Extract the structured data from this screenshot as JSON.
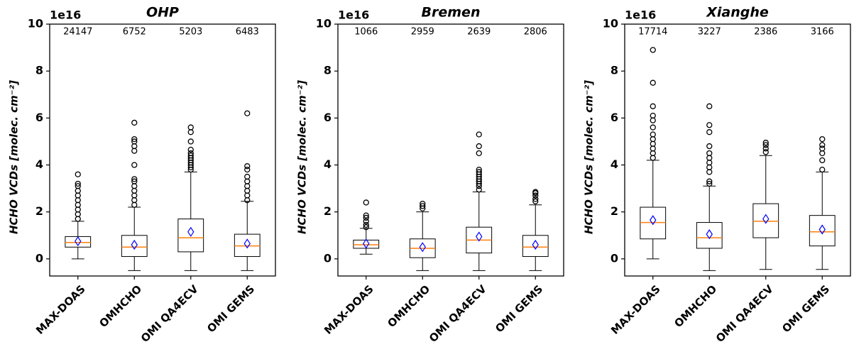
{
  "chart_data": [
    {
      "type": "box",
      "title": "OHP",
      "offset_label": "1e16",
      "ylabel": "HCHO VCDs [molec. cm⁻²]",
      "categories": [
        "MAX-DOAS",
        "OMHCHO",
        "OMI QA4ECV",
        "OMI GEMS"
      ],
      "counts": [
        24147,
        6752,
        5203,
        6483
      ],
      "ylim": [
        -0.73,
        10
      ],
      "yticks": [
        0,
        2,
        4,
        6,
        8,
        10
      ],
      "box_color": "#000000",
      "median_color": "#ff7f0e",
      "mean_color": "#0000ff",
      "boxes": [
        {
          "whislo": 0,
          "q1": 0.5,
          "med": 0.7,
          "q3": 0.95,
          "whishi": 1.6,
          "mean": 0.75,
          "fliers": [
            1.7,
            1.9,
            2.1,
            2.3,
            2.5,
            2.7,
            2.9,
            3.1,
            3.2,
            3.6
          ]
        },
        {
          "whislo": -0.5,
          "q1": 0.1,
          "med": 0.5,
          "q3": 1.0,
          "whishi": 2.2,
          "mean": 0.6,
          "fliers": [
            2.3,
            2.5,
            2.7,
            2.9,
            3.1,
            3.3,
            3.4,
            4.0,
            4.6,
            4.8,
            5.0,
            5.1,
            5.8
          ]
        },
        {
          "whislo": -0.5,
          "q1": 0.3,
          "med": 0.9,
          "q3": 1.7,
          "whishi": 3.7,
          "mean": 1.15,
          "fliers": [
            3.8,
            3.9,
            4.0,
            4.1,
            4.2,
            4.3,
            4.4,
            4.5,
            4.65,
            5.0,
            5.4,
            5.6
          ]
        },
        {
          "whislo": -0.5,
          "q1": 0.1,
          "med": 0.55,
          "q3": 1.05,
          "whishi": 2.45,
          "mean": 0.65,
          "fliers": [
            2.5,
            2.7,
            2.9,
            3.1,
            3.3,
            3.5,
            3.8,
            3.95,
            6.2
          ]
        }
      ]
    },
    {
      "type": "box",
      "title": "Bremen",
      "offset_label": "1e16",
      "ylabel": "HCHO VCDs [molec. cm⁻²]",
      "categories": [
        "MAX-DOAS",
        "OMHCHO",
        "OMI QA4ECV",
        "OMI GEMS"
      ],
      "counts": [
        1066,
        2959,
        2639,
        2806
      ],
      "ylim": [
        -0.73,
        10
      ],
      "yticks": [
        0,
        2,
        4,
        6,
        8,
        10
      ],
      "box_color": "#000000",
      "median_color": "#ff7f0e",
      "mean_color": "#0000ff",
      "boxes": [
        {
          "whislo": 0.2,
          "q1": 0.45,
          "med": 0.6,
          "q3": 0.8,
          "whishi": 1.3,
          "mean": 0.65,
          "fliers": [
            1.35,
            1.45,
            1.6,
            1.75,
            1.85,
            2.4
          ]
        },
        {
          "whislo": -0.5,
          "q1": 0.05,
          "med": 0.45,
          "q3": 0.85,
          "whishi": 2.0,
          "mean": 0.5,
          "fliers": [
            2.15,
            2.25,
            2.35
          ]
        },
        {
          "whislo": -0.5,
          "q1": 0.25,
          "med": 0.8,
          "q3": 1.35,
          "whishi": 2.85,
          "mean": 0.95,
          "fliers": [
            2.95,
            3.1,
            3.2,
            3.3,
            3.4,
            3.5,
            3.6,
            3.7,
            3.8,
            4.5,
            4.8,
            5.3
          ]
        },
        {
          "whislo": -0.5,
          "q1": 0.1,
          "med": 0.5,
          "q3": 1.0,
          "whishi": 2.3,
          "mean": 0.6,
          "fliers": [
            2.45,
            2.55,
            2.7,
            2.8,
            2.85
          ]
        }
      ]
    },
    {
      "type": "box",
      "title": "Xianghe",
      "offset_label": "1e16",
      "ylabel": "HCHO VCDs [molec. cm⁻²]",
      "categories": [
        "MAX-DOAS",
        "OMHCHO",
        "OMI QA4ECV",
        "OMI GEMS"
      ],
      "counts": [
        17714,
        3227,
        2386,
        3166
      ],
      "ylim": [
        -0.73,
        10
      ],
      "yticks": [
        0,
        2,
        4,
        6,
        8,
        10
      ],
      "box_color": "#000000",
      "median_color": "#ff7f0e",
      "mean_color": "#0000ff",
      "boxes": [
        {
          "whislo": 0,
          "q1": 0.85,
          "med": 1.55,
          "q3": 2.2,
          "whishi": 4.2,
          "mean": 1.65,
          "fliers": [
            4.3,
            4.5,
            4.7,
            4.9,
            5.1,
            5.3,
            5.6,
            5.9,
            6.1,
            6.5,
            7.5,
            8.9
          ]
        },
        {
          "whislo": -0.5,
          "q1": 0.45,
          "med": 0.9,
          "q3": 1.55,
          "whishi": 3.1,
          "mean": 1.05,
          "fliers": [
            3.2,
            3.3,
            3.7,
            3.9,
            4.1,
            4.3,
            4.5,
            4.8,
            5.4,
            5.7,
            6.5
          ]
        },
        {
          "whislo": -0.45,
          "q1": 0.9,
          "med": 1.6,
          "q3": 2.35,
          "whishi": 4.4,
          "mean": 1.7,
          "fliers": [
            4.55,
            4.7,
            4.85,
            4.95
          ]
        },
        {
          "whislo": -0.45,
          "q1": 0.55,
          "med": 1.15,
          "q3": 1.85,
          "whishi": 3.7,
          "mean": 1.25,
          "fliers": [
            3.8,
            4.2,
            4.5,
            4.7,
            4.85,
            5.1
          ]
        }
      ]
    }
  ]
}
